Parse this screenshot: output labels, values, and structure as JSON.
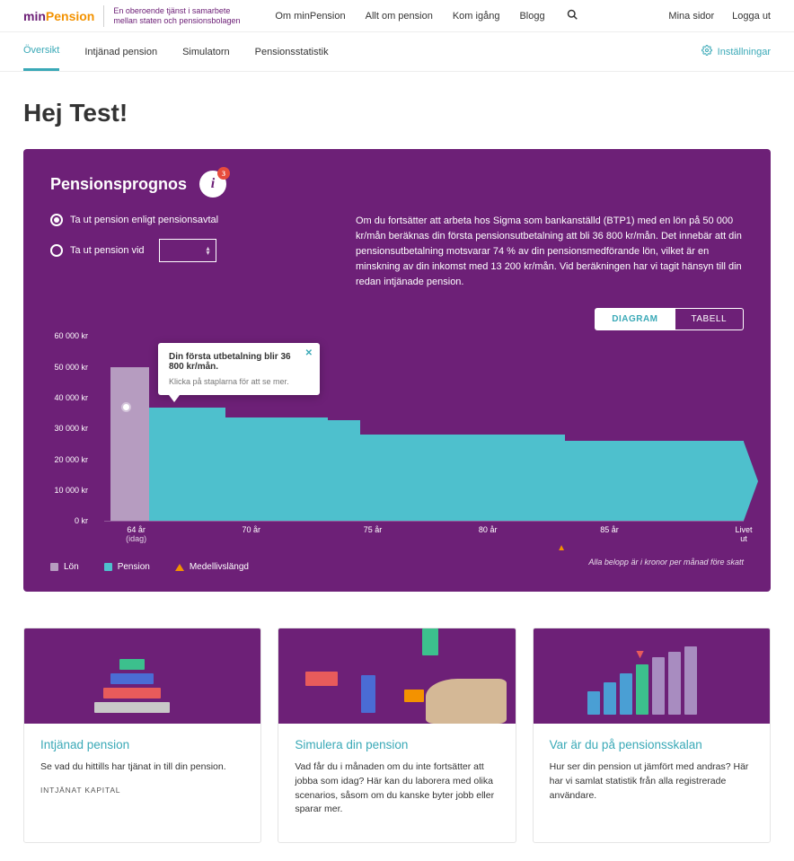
{
  "header": {
    "logo_text_1": "min",
    "logo_text_2": "Pension",
    "logo_tagline": "En oberoende tjänst i samarbete mellan staten och pensionsbolagen",
    "nav": [
      "Om minPension",
      "Allt om pension",
      "Kom igång",
      "Blogg"
    ],
    "right": [
      "Mina sidor",
      "Logga ut"
    ]
  },
  "subnav": {
    "items": [
      "Översikt",
      "Intjänad pension",
      "Simulatorn",
      "Pensionsstatistik"
    ],
    "active_index": 0,
    "settings_label": "Inställningar"
  },
  "greeting": "Hej Test!",
  "prognosis": {
    "title": "Pensionsprognos",
    "info_count": "3",
    "radio1_label": "Ta ut pension enligt pensionsavtal",
    "radio2_label": "Ta ut pension vid",
    "description": "Om du fortsätter att arbeta hos Sigma som bankanställd (BTP1) med en lön på 50 000 kr/mån beräknas din första pensionsutbetalning att bli 36 800 kr/mån. Det innebär att din pensionsutbetalning motsvarar 74 % av din pensionsmedförande lön, vilket är en minskning av din inkomst med 13 200 kr/mån. Vid beräkningen har vi tagit hänsyn till din redan intjänade pension.",
    "toggle": {
      "diagram": "DIAGRAM",
      "table": "TABELL"
    },
    "chart": {
      "y_ticks": [
        "60 000 kr",
        "50 000 kr",
        "40 000 kr",
        "30 000 kr",
        "20 000 kr",
        "10 000 kr",
        "0 kr"
      ],
      "y_max": 60000,
      "x_ticks": [
        {
          "label": "64 år",
          "sublabel": "(idag)",
          "pos": 0.05
        },
        {
          "label": "70 år",
          "pos": 0.23
        },
        {
          "label": "75 år",
          "pos": 0.42
        },
        {
          "label": "80 år",
          "pos": 0.6
        },
        {
          "label": "85 år",
          "pos": 0.79
        },
        {
          "label": "Livet ut",
          "pos": 1.0
        }
      ],
      "salary_bar": {
        "start": 0.01,
        "end": 0.07,
        "value": 50000,
        "color": "#b69cc0"
      },
      "pension_bars": [
        {
          "start": 0.01,
          "end": 0.19,
          "value": 36800
        },
        {
          "start": 0.19,
          "end": 0.35,
          "value": 33500
        },
        {
          "start": 0.35,
          "end": 0.4,
          "value": 32800
        },
        {
          "start": 0.4,
          "end": 0.72,
          "value": 28000
        },
        {
          "start": 0.72,
          "end": 1.0,
          "value": 26000
        }
      ],
      "pension_color": "#4ec0cd",
      "median_pos": 0.715,
      "tooltip": {
        "title": "Din första utbetalning blir 36 800 kr/mån.",
        "sub": "Klicka på staplarna för att se mer."
      },
      "legend": {
        "salary": "Lön",
        "pension": "Pension",
        "median": "Medellivslängd"
      },
      "note": "Alla belopp är i kronor per månad före skatt"
    }
  },
  "cards": [
    {
      "title": "Intjänad pension",
      "desc": "Se vad du hittills har tjänat in till din pension.",
      "caption": "INTJÄNAT KAPITAL"
    },
    {
      "title": "Simulera din pension",
      "desc": "Vad får du i månaden om du inte fortsätter att jobba som idag? Här kan du laborera med olika scenarios, såsom om du kanske byter jobb eller sparar mer."
    },
    {
      "title": "Var är du på pensionsskalan",
      "desc": "Hur ser din pension ut jämfört med andras? Här har vi samlat statistik från alla registrerade användare."
    }
  ],
  "colors": {
    "brand_purple": "#6d2077",
    "brand_orange": "#f39200",
    "brand_teal": "#3aa9b7",
    "chart_pension": "#4ec0cd",
    "chart_salary": "#b69cc0"
  }
}
